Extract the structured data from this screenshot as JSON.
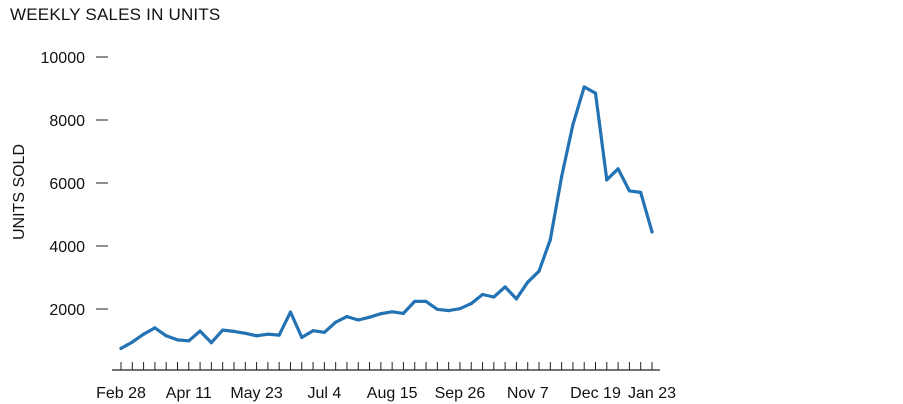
{
  "chart_data": {
    "type": "line",
    "title": "WEEKLY SALES IN UNITS",
    "xlabel": "",
    "ylabel": "UNITS SOLD",
    "ylim": [
      0,
      10000
    ],
    "yticks": [
      2000,
      4000,
      6000,
      8000,
      10000
    ],
    "y_tick_labels": [
      "2000",
      "4000",
      "6000",
      "8000",
      "10000"
    ],
    "x_tick_labels": [
      "Feb 28",
      "Apr 11",
      "May 23",
      "Jul 4",
      "Aug 15",
      "Sep 26",
      "Nov 7",
      "Dec 19",
      "Jan 23"
    ],
    "x_tick_label_week_index": [
      0,
      6,
      12,
      18,
      24,
      30,
      36,
      42,
      47
    ],
    "x_minor_ticks_count": 48,
    "grid": false,
    "color": "#2272b4",
    "series": [
      {
        "values": [
          750,
          950,
          1200,
          1400,
          1150,
          1020,
          990,
          1300,
          930,
          1330,
          1290,
          1230,
          1150,
          1200,
          1170,
          1900,
          1100,
          1310,
          1260,
          1580,
          1760,
          1650,
          1740,
          1850,
          1910,
          1860,
          2240,
          2240,
          1990,
          1950,
          2010,
          2170,
          2460,
          2380,
          2700,
          2320,
          2850,
          3200,
          4200,
          6200,
          7850,
          9050,
          8850,
          6100,
          6450,
          5750,
          5700,
          4450
        ]
      }
    ]
  }
}
